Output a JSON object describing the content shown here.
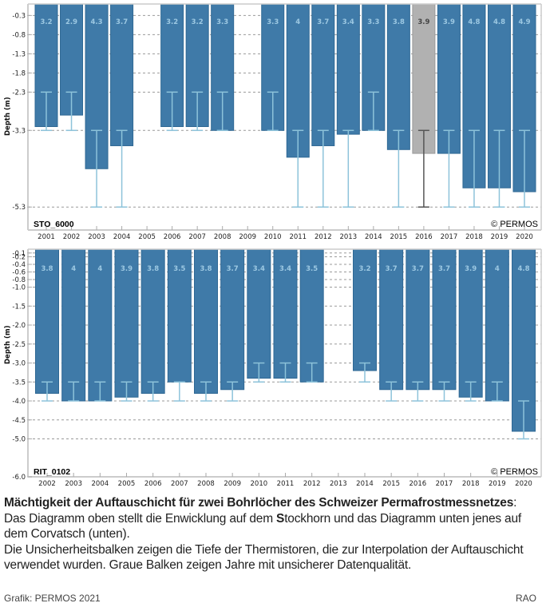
{
  "colors": {
    "bar": "#3f7aa8",
    "bar_edge": "#2f6894",
    "bar_uncertain": "#b1b1b1",
    "bar_uncertain_edge": "#9a9a9a",
    "errorbar": "#8dc3da",
    "errorbar_uncertain": "#555555",
    "bar_label": "#9cc8e2",
    "bar_label_uncertain": "#444444",
    "grid": "#9a9a9a",
    "axis": "#cccccc"
  },
  "chart_data": [
    {
      "type": "bar",
      "station": "STO_6000",
      "copyright": "© PERMOS",
      "ylabel": "Depth (m)",
      "xlabel": "",
      "ylim": [
        0,
        -5.9
      ],
      "yticks": [
        -0.3,
        -0.8,
        -1.3,
        -1.8,
        -2.3,
        -3.3,
        -5.3
      ],
      "ytick_labels": [
        "-0.3",
        "-0.8",
        "-1.3",
        "-1.8",
        "-2.3",
        "-3.3",
        "-5.3"
      ],
      "grid": "horizontal dashed",
      "categories": [
        "2001",
        "2002",
        "2003",
        "2004",
        "2005",
        "2006",
        "2007",
        "2008",
        "2009",
        "2010",
        "2011",
        "2012",
        "2013",
        "2014",
        "2015",
        "2016",
        "2017",
        "2018",
        "2019",
        "2020"
      ],
      "values": [
        3.2,
        2.9,
        4.3,
        3.7,
        null,
        3.2,
        3.2,
        3.3,
        null,
        3.3,
        4,
        3.7,
        3.4,
        3.3,
        3.8,
        3.9,
        3.9,
        4.8,
        4.8,
        4.9
      ],
      "labels": [
        "3.2",
        "2.9",
        "4.3",
        "3.7",
        "",
        "3.2",
        "3.2",
        "3.3",
        "",
        "3.3",
        "4",
        "3.7",
        "3.4",
        "3.3",
        "3.8",
        "3.9",
        "3.9",
        "4.8",
        "4.8",
        "4.9"
      ],
      "uncertain": [
        false,
        false,
        false,
        false,
        false,
        false,
        false,
        false,
        false,
        false,
        false,
        false,
        false,
        false,
        false,
        true,
        false,
        false,
        false,
        false
      ],
      "error_low": [
        2.3,
        2.3,
        3.3,
        3.3,
        null,
        2.3,
        2.3,
        2.3,
        null,
        2.3,
        3.3,
        3.3,
        3.3,
        2.3,
        3.3,
        3.3,
        3.3,
        3.3,
        3.3,
        3.3
      ],
      "error_high": [
        3.3,
        3.3,
        5.3,
        5.3,
        null,
        3.3,
        3.3,
        3.3,
        null,
        3.3,
        5.3,
        5.3,
        5.3,
        3.3,
        5.3,
        5.3,
        5.3,
        5.3,
        5.3,
        5.3
      ]
    },
    {
      "type": "bar",
      "station": "RIT_0102",
      "copyright": "© PERMOS",
      "ylabel": "Depth (m)",
      "xlabel": "",
      "ylim": [
        0,
        -6.0
      ],
      "yticks": [
        -0.1,
        -0.2,
        -0.4,
        -0.6,
        -0.8,
        -1.0,
        -1.5,
        -2.0,
        -2.5,
        -3.0,
        -3.5,
        -4.0,
        -4.5,
        -5.0,
        -6.0
      ],
      "ytick_labels": [
        "-0.1",
        "-0.2",
        "-0.4",
        "-0.6",
        "-0.8",
        "-1.0",
        "-1.5",
        "-2.0",
        "-2.5",
        "-3.0",
        "-3.5",
        "-4.0",
        "-4.5",
        "-5.0",
        "-6.0"
      ],
      "grid": "horizontal dashed",
      "categories": [
        "2002",
        "2003",
        "2004",
        "2005",
        "2006",
        "2007",
        "2008",
        "2009",
        "2010",
        "2011",
        "2012",
        "2013",
        "2014",
        "2015",
        "2016",
        "2017",
        "2018",
        "2019",
        "2020"
      ],
      "values": [
        3.8,
        4,
        4,
        3.9,
        3.8,
        3.5,
        3.8,
        3.7,
        3.4,
        3.4,
        3.5,
        null,
        3.2,
        3.7,
        3.7,
        3.7,
        3.9,
        4,
        4.8
      ],
      "labels": [
        "3.8",
        "4",
        "4",
        "3.9",
        "3.8",
        "3.5",
        "3.8",
        "3.7",
        "3.4",
        "3.4",
        "3.5",
        "",
        "3.2",
        "3.7",
        "3.7",
        "3.7",
        "3.9",
        "4",
        "4.8"
      ],
      "uncertain": [
        false,
        false,
        false,
        false,
        false,
        false,
        false,
        false,
        false,
        false,
        false,
        false,
        false,
        false,
        false,
        false,
        false,
        false,
        false
      ],
      "error_low": [
        3.5,
        3.5,
        3.5,
        3.5,
        3.5,
        3.5,
        3.5,
        3.5,
        3.0,
        3.0,
        3.0,
        null,
        3.0,
        3.5,
        3.5,
        3.5,
        3.5,
        3.5,
        4.0
      ],
      "error_high": [
        4.0,
        4.0,
        4.0,
        4.0,
        4.0,
        4.0,
        4.0,
        4.0,
        3.5,
        3.5,
        3.5,
        null,
        3.5,
        4.0,
        4.0,
        4.0,
        4.0,
        4.0,
        5.0
      ]
    }
  ],
  "caption": {
    "title": "Mächtigkeit der Auftauschicht für zwei Bohrlöcher des Schweizer Permafrostmessnetzes",
    "title_suffix": ":",
    "line1_pre": "Das Diagramm oben stellt die Enwicklung auf dem ",
    "line1_bold": "S",
    "line1_post": "tockhorn und das Diagramm unten jenes auf dem Corvatsch (unten).",
    "line2": "Die Unsicherheitsbalken zeigen die Tiefe der Thermistoren, die zur Interpolation der Auftauschicht verwendet wurden. Graue Balken zeigen Jahre mit unsicherer Datenqualität."
  },
  "footer": {
    "credit": "Grafik: PERMOS 2021",
    "initials": "RAO"
  }
}
